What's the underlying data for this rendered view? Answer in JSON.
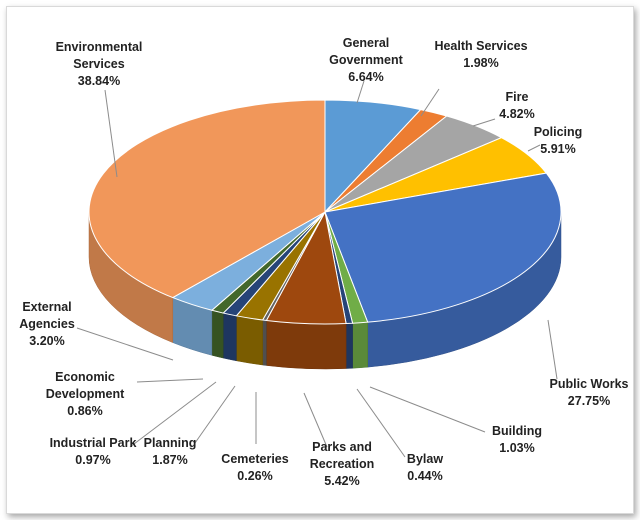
{
  "chart_data": {
    "type": "pie",
    "style": "3d",
    "title": "",
    "slices": [
      {
        "label_lines": [
          "General",
          "Government"
        ],
        "value_text": "6.64%",
        "value": 6.64,
        "color": "#5b9bd5"
      },
      {
        "label_lines": [
          "Health Services"
        ],
        "value_text": "1.98%",
        "value": 1.98,
        "color": "#ed7d31"
      },
      {
        "label_lines": [
          "Fire"
        ],
        "value_text": "4.82%",
        "value": 4.82,
        "color": "#a5a5a5"
      },
      {
        "label_lines": [
          "Policing"
        ],
        "value_text": "5.91%",
        "value": 5.91,
        "color": "#ffc000"
      },
      {
        "label_lines": [
          "Public Works"
        ],
        "value_text": "27.75%",
        "value": 27.75,
        "color": "#4472c4"
      },
      {
        "label_lines": [
          "Building"
        ],
        "value_text": "1.03%",
        "value": 1.03,
        "color": "#70ad47"
      },
      {
        "label_lines": [
          "Bylaw"
        ],
        "value_text": "0.44%",
        "value": 0.44,
        "color": "#264478"
      },
      {
        "label_lines": [
          "Parks and",
          "Recreation"
        ],
        "value_text": "5.42%",
        "value": 5.42,
        "color": "#9e480e"
      },
      {
        "label_lines": [
          "Cemeteries"
        ],
        "value_text": "0.26%",
        "value": 0.26,
        "color": "#636363"
      },
      {
        "label_lines": [
          "Planning"
        ],
        "value_text": "1.87%",
        "value": 1.87,
        "color": "#997300"
      },
      {
        "label_lines": [
          "Industrial Park"
        ],
        "value_text": "0.97%",
        "value": 0.97,
        "color": "#264478"
      },
      {
        "label_lines": [
          "Economic",
          "Development"
        ],
        "value_text": "0.86%",
        "value": 0.86,
        "color": "#43682b"
      },
      {
        "label_lines": [
          "External",
          "Agencies"
        ],
        "value_text": "3.20%",
        "value": 3.2,
        "color": "#7cafdd"
      },
      {
        "label_lines": [
          "Environmental",
          "Services"
        ],
        "value_text": "38.84%",
        "value": 38.84,
        "color": "#f1975a"
      }
    ]
  }
}
